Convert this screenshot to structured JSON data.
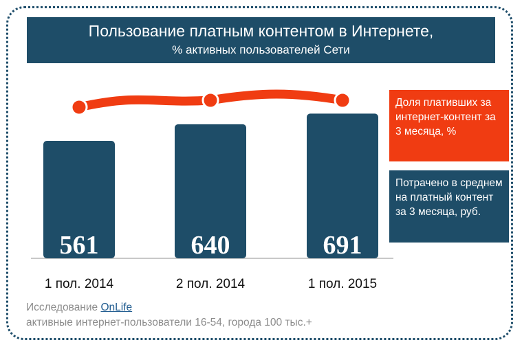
{
  "header": {
    "title": "Пользование платным контентом в Интернете,",
    "subtitle": "% активных пользователей Сети"
  },
  "chart_data": {
    "type": "bar",
    "categories": [
      "1 пол. 2014",
      "2 пол. 2014",
      "1 пол. 2015"
    ],
    "series": [
      {
        "name": "Потрачено в среднем на платный контент за 3 месяца, руб.",
        "type": "bar",
        "values": [
          561,
          640,
          691
        ],
        "color": "#1e4d68"
      },
      {
        "name": "Доля плативших за интернет-контент за 3 месяца, %",
        "type": "line",
        "values": [
          32,
          33,
          33
        ],
        "color": "#f03c12"
      }
    ],
    "ylim_bar": [
      0,
      800
    ],
    "ylim_line": [
      0,
      34
    ],
    "grid": false,
    "legend_position": "right"
  },
  "legend": {
    "line_label": "Доля плативших за интернет-контент за 3 месяца, %",
    "bar_label": "Потрачено в среднем на платный контент за 3 месяца, руб."
  },
  "source": {
    "prefix": "Исследование ",
    "link": "OnLife",
    "note": "активные интернет-пользователи 16-54, города 100 тыс.+"
  },
  "colors": {
    "navy": "#1e4d68",
    "orange": "#f03c12",
    "frame": "#1f4e6b",
    "source_text": "#8c8c8c",
    "link": "#1f5b8f"
  }
}
